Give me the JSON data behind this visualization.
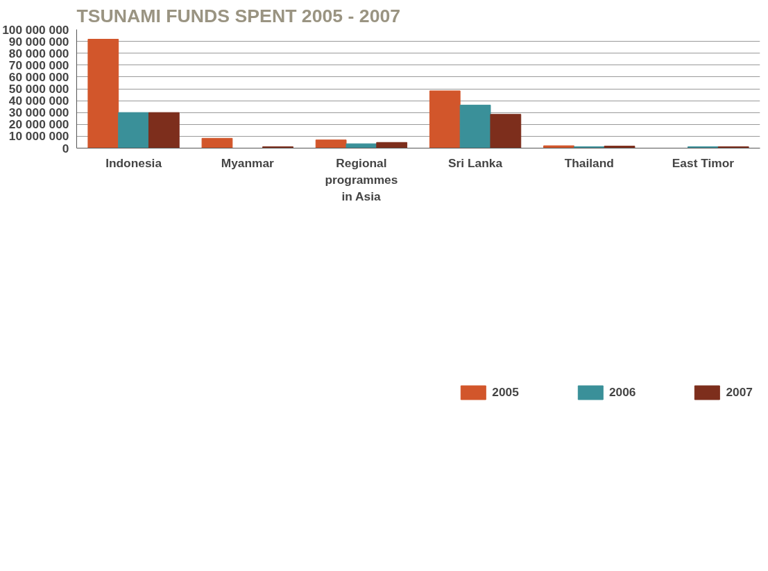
{
  "chart_data": {
    "type": "bar",
    "title": "TSUNAMI FUNDS SPENT 2005 - 2007",
    "categories": [
      "Indonesia",
      "Myanmar",
      "Regional programmes in Asia",
      "Sri Lanka",
      "Thailand",
      "East Timor"
    ],
    "series": [
      {
        "name": "2005",
        "color": "#d2562b",
        "values": [
          91800000,
          8300000,
          6900000,
          48300000,
          2000000,
          null
        ]
      },
      {
        "name": "2006",
        "color": "#3a9099",
        "values": [
          30000000,
          null,
          3700000,
          36300000,
          1200000,
          1200000
        ]
      },
      {
        "name": "2007",
        "color": "#7d2e1c",
        "values": [
          30000000,
          1200000,
          4800000,
          28500000,
          1700000,
          1200000
        ]
      }
    ],
    "ylim": [
      0,
      100000000
    ],
    "yticks": [
      0,
      {
        "value": 10000000,
        "label": "10 000 000"
      },
      {
        "value": 20000000,
        "label": "20 000 000"
      },
      {
        "value": 30000000,
        "label": "30 000 000"
      },
      {
        "value": 40000000,
        "label": "40 000 000"
      },
      {
        "value": 50000000,
        "label": "50 000 000"
      },
      {
        "value": 60000000,
        "label": "60 000 000"
      },
      {
        "value": 70000000,
        "label": "70 000 000"
      },
      {
        "value": 80000000,
        "label": "80 000 000"
      },
      {
        "value": 90000000,
        "label": "90 000 000"
      },
      {
        "value": 100000000,
        "label": "100 000 000"
      }
    ],
    "grid": "y",
    "legend": "bottom"
  }
}
